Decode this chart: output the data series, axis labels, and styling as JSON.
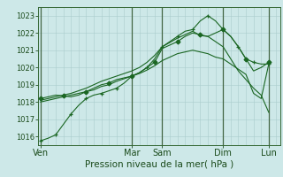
{
  "xlabel": "Pression niveau de la mer( hPa )",
  "bg_color": "#cde8e8",
  "grid_color": "#aacccc",
  "line_color": "#1a6622",
  "vline_color": "#446644",
  "ylim": [
    1015.5,
    1023.5
  ],
  "xlim": [
    -0.3,
    31.5
  ],
  "xtick_labels": [
    "Ven",
    "Mar",
    "Sam",
    "Dim",
    "Lun"
  ],
  "xtick_pos": [
    0,
    12,
    16,
    24,
    30
  ],
  "yticks": [
    1016,
    1017,
    1018,
    1019,
    1020,
    1021,
    1022,
    1023
  ],
  "series": [
    {
      "x": [
        0,
        1,
        2,
        3,
        4,
        5,
        6,
        7,
        8,
        9,
        10,
        11,
        12,
        13,
        14,
        15,
        16,
        17,
        18,
        19,
        20,
        21,
        22,
        23,
        24,
        25,
        26,
        27,
        28,
        29,
        30
      ],
      "y": [
        1015.75,
        1015.9,
        1016.1,
        1016.7,
        1017.3,
        1017.8,
        1018.2,
        1018.4,
        1018.5,
        1018.65,
        1018.8,
        1019.1,
        1019.5,
        1019.7,
        1020.0,
        1020.5,
        1021.2,
        1021.5,
        1021.8,
        1022.1,
        1022.2,
        1022.7,
        1023.0,
        1022.7,
        1022.2,
        1021.8,
        1021.2,
        1020.5,
        1020.3,
        1020.2,
        1020.2
      ],
      "marker": "+",
      "linestyle": "-",
      "markersize": 3.5,
      "markevery": 2
    },
    {
      "x": [
        0,
        1,
        2,
        3,
        4,
        5,
        6,
        7,
        8,
        9,
        10,
        11,
        12,
        13,
        14,
        15,
        16,
        17,
        18,
        19,
        20,
        21,
        22,
        23,
        24,
        25,
        26,
        27,
        28,
        29,
        30
      ],
      "y": [
        1018.2,
        1018.3,
        1018.4,
        1018.35,
        1018.3,
        1018.4,
        1018.6,
        1018.8,
        1019.0,
        1019.1,
        1019.3,
        1019.4,
        1019.5,
        1019.7,
        1020.0,
        1020.3,
        1021.1,
        1021.3,
        1021.5,
        1021.8,
        1022.0,
        1021.9,
        1021.8,
        1022.0,
        1022.2,
        1021.8,
        1021.2,
        1020.5,
        1019.8,
        1020.0,
        1020.3
      ],
      "marker": "D",
      "linestyle": "-",
      "markersize": 2.5,
      "markevery": 3
    },
    {
      "x": [
        0,
        1,
        2,
        3,
        4,
        5,
        6,
        7,
        8,
        9,
        10,
        11,
        12,
        13,
        14,
        15,
        16,
        17,
        18,
        19,
        20,
        21,
        22,
        23,
        24,
        25,
        26,
        27,
        28,
        29,
        30
      ],
      "y": [
        1018.1,
        1018.2,
        1018.3,
        1018.4,
        1018.5,
        1018.65,
        1018.8,
        1019.0,
        1019.2,
        1019.35,
        1019.5,
        1019.65,
        1019.8,
        1020.0,
        1020.3,
        1020.7,
        1021.2,
        1021.45,
        1021.7,
        1021.9,
        1022.1,
        1021.85,
        1021.8,
        1021.5,
        1021.2,
        1020.5,
        1019.8,
        1019.3,
        1018.8,
        1018.4,
        1017.4
      ],
      "marker": null,
      "linestyle": "-",
      "markersize": 0,
      "markevery": 1
    },
    {
      "x": [
        0,
        1,
        2,
        3,
        4,
        5,
        6,
        7,
        8,
        9,
        10,
        11,
        12,
        13,
        14,
        15,
        16,
        17,
        18,
        19,
        20,
        21,
        22,
        23,
        24,
        25,
        26,
        27,
        28,
        29,
        30
      ],
      "y": [
        1018.0,
        1018.1,
        1018.2,
        1018.3,
        1018.4,
        1018.5,
        1018.6,
        1018.7,
        1018.9,
        1019.0,
        1019.2,
        1019.35,
        1019.5,
        1019.65,
        1019.85,
        1020.1,
        1020.4,
        1020.6,
        1020.8,
        1020.9,
        1021.0,
        1020.9,
        1020.8,
        1020.6,
        1020.5,
        1020.2,
        1019.9,
        1019.6,
        1018.5,
        1018.2,
        1020.2
      ],
      "marker": null,
      "linestyle": "-",
      "markersize": 0,
      "markevery": 1
    }
  ],
  "vline_positions": [
    0,
    12,
    16,
    24,
    30
  ],
  "grid_step_x": 1,
  "ytick_fontsize": 6,
  "xtick_fontsize": 7,
  "xlabel_fontsize": 7.5
}
